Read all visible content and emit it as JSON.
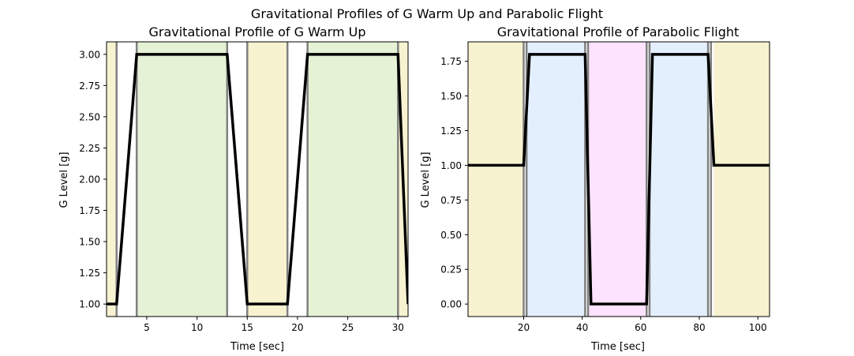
{
  "figure": {
    "suptitle": "Gravitational Profiles of G Warm Up and Parabolic Flight"
  },
  "chart_data": [
    {
      "type": "line",
      "title": "Gravitational Profile of G Warm Up",
      "xlabel": "Time [sec]",
      "ylabel": "G Level [g]",
      "xlim": [
        1,
        31
      ],
      "ylim": [
        0.9,
        3.1
      ],
      "xticks": [
        5,
        10,
        15,
        20,
        25,
        30
      ],
      "yticks": [
        1.0,
        1.25,
        1.5,
        1.75,
        2.0,
        2.25,
        2.5,
        2.75,
        3.0
      ],
      "ytick_labels": [
        "1.00",
        "1.25",
        "1.50",
        "1.75",
        "2.00",
        "2.25",
        "2.50",
        "2.75",
        "3.00"
      ],
      "grid": false,
      "series": [
        {
          "color": "#000000",
          "x": [
            1,
            2,
            4,
            13,
            15,
            19,
            21,
            30,
            31
          ],
          "y": [
            1,
            1,
            3,
            3,
            1,
            1,
            3,
            3,
            1
          ]
        }
      ],
      "bands": [
        {
          "x0": 1,
          "x1": 2,
          "color": "#f7f2d0"
        },
        {
          "x0": 4,
          "x1": 13,
          "color": "#e5f2d5"
        },
        {
          "x0": 15,
          "x1": 19,
          "color": "#f7f2d0"
        },
        {
          "x0": 21,
          "x1": 30,
          "color": "#e5f2d5"
        },
        {
          "x0": 30,
          "x1": 31,
          "color": "#f7f2d0"
        }
      ],
      "vlines": [
        2,
        4,
        13,
        15,
        19,
        21,
        30
      ]
    },
    {
      "type": "line",
      "title": "Gravitational Profile of Parabolic Flight",
      "xlabel": "Time [sec]",
      "ylabel": "G Level [g]",
      "xlim": [
        1,
        104
      ],
      "ylim": [
        -0.09,
        1.89
      ],
      "xticks": [
        20,
        40,
        60,
        80,
        100
      ],
      "yticks": [
        0.0,
        0.25,
        0.5,
        0.75,
        1.0,
        1.25,
        1.5,
        1.75
      ],
      "ytick_labels": [
        "0.00",
        "0.25",
        "0.50",
        "0.75",
        "1.00",
        "1.25",
        "1.50",
        "1.75"
      ],
      "grid": false,
      "series": [
        {
          "color": "#000000",
          "x": [
            1,
            20,
            22,
            41,
            43,
            62,
            64,
            83,
            85,
            104
          ],
          "y": [
            1,
            1,
            1.8,
            1.8,
            0,
            0,
            1.8,
            1.8,
            1,
            1
          ]
        }
      ],
      "bands": [
        {
          "x0": 1,
          "x1": 20,
          "color": "#f7f2d0"
        },
        {
          "x0": 21,
          "x1": 41,
          "color": "#e3effd"
        },
        {
          "x0": 42,
          "x1": 62,
          "color": "#fde3fd"
        },
        {
          "x0": 63,
          "x1": 83,
          "color": "#e3effd"
        },
        {
          "x0": 85,
          "x1": 104,
          "color": "#f7f2d0"
        }
      ],
      "vlines": [
        20,
        21,
        41,
        42,
        62,
        63,
        83,
        84
      ]
    }
  ]
}
